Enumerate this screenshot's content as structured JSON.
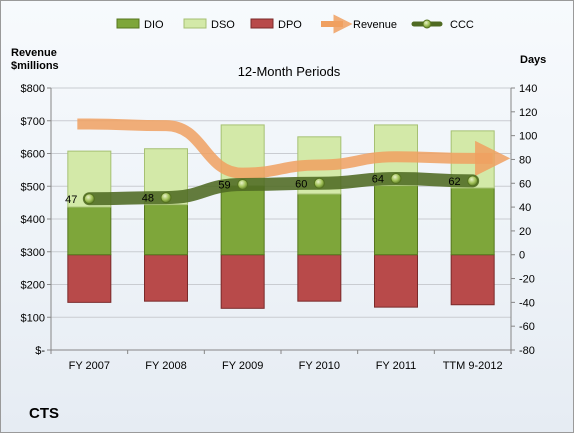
{
  "chart_data": {
    "type": "bar",
    "title": "12-Month Periods",
    "company": "CTS",
    "y_left_label": [
      "Revenue",
      "$millions"
    ],
    "y_right_label": "Days",
    "categories": [
      "FY 2007",
      "FY 2008",
      "FY 2009",
      "FY 2010",
      "FY 2011",
      "TTM 9-2012"
    ],
    "y_left_range": [
      0,
      800
    ],
    "y_left_ticks": [
      "$-",
      "$100",
      "$200",
      "$300",
      "$400",
      "$500",
      "$600",
      "$700",
      "$800"
    ],
    "y_right_range": [
      -80,
      140
    ],
    "y_right_ticks": [
      "-80",
      "-60",
      "-40",
      "-20",
      "0",
      "20",
      "40",
      "60",
      "80",
      "100",
      "120",
      "140"
    ],
    "grid": true,
    "legend_position": "top",
    "series": [
      {
        "name": "DIO",
        "type": "stacked-bar",
        "color": "#7ea63a",
        "values": [
          40,
          42,
          58,
          51,
          58,
          56
        ]
      },
      {
        "name": "DSO",
        "type": "stacked-bar",
        "color": "#d3e9a8",
        "values": [
          47,
          47,
          51,
          48,
          51,
          48
        ]
      },
      {
        "name": "DPO",
        "type": "stacked-bar",
        "color": "#b84a4a",
        "values": [
          -40,
          -39,
          -45,
          -39,
          -44,
          -42
        ]
      },
      {
        "name": "Revenue",
        "type": "line",
        "color": "#f0a060",
        "values": [
          690,
          685,
          540,
          565,
          590,
          585
        ]
      },
      {
        "name": "CCC",
        "type": "line",
        "color": "#6b8a35",
        "values": [
          47,
          48,
          59,
          60,
          64,
          62
        ]
      }
    ],
    "data_labels": [
      "47",
      "48",
      "59",
      "60",
      "64",
      "62"
    ]
  }
}
